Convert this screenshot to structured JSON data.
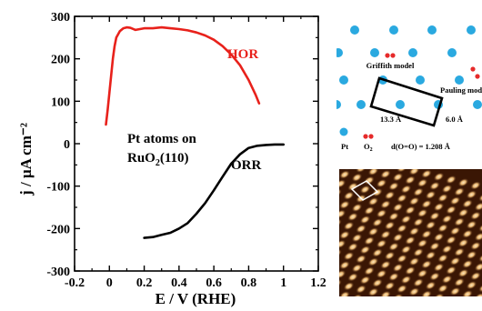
{
  "chart_data": {
    "type": "line",
    "xlabel": "E / V (RHE)",
    "ylabel": "j / μA cm⁻²",
    "xlim": [
      -0.2,
      1.2
    ],
    "ylim": [
      -300,
      300
    ],
    "x_ticks": [
      -0.2,
      0,
      0.2,
      0.4,
      0.6,
      0.8,
      1,
      1.2
    ],
    "x_tick_labels": [
      "-0.2",
      "0",
      "0.2",
      "0.4",
      "0.6",
      "0.8",
      "1",
      "1.2"
    ],
    "y_ticks": [
      -300,
      -200,
      -100,
      0,
      100,
      200,
      300
    ],
    "y_tick_labels": [
      "-300",
      "-200",
      "-100",
      "0",
      "100",
      "200",
      "300"
    ],
    "grid": false,
    "series": [
      {
        "name": "HOR",
        "color": "#e8211b",
        "x": [
          -0.02,
          -0.01,
          0.0,
          0.01,
          0.02,
          0.03,
          0.04,
          0.06,
          0.08,
          0.1,
          0.12,
          0.15,
          0.2,
          0.25,
          0.3,
          0.35,
          0.4,
          0.45,
          0.5,
          0.55,
          0.6,
          0.65,
          0.7,
          0.75,
          0.8,
          0.84,
          0.86
        ],
        "y": [
          45,
          80,
          120,
          160,
          200,
          230,
          250,
          265,
          272,
          274,
          273,
          268,
          272,
          272,
          274,
          272,
          270,
          267,
          262,
          255,
          245,
          230,
          210,
          185,
          150,
          115,
          95
        ]
      },
      {
        "name": "ORR",
        "color": "#000000",
        "x": [
          0.2,
          0.25,
          0.3,
          0.35,
          0.4,
          0.45,
          0.5,
          0.55,
          0.6,
          0.65,
          0.7,
          0.75,
          0.8,
          0.85,
          0.9,
          0.95,
          1.0
        ],
        "y": [
          -222,
          -220,
          -215,
          -210,
          -200,
          -187,
          -165,
          -140,
          -110,
          -78,
          -47,
          -25,
          -10,
          -5,
          -3,
          -2,
          -2
        ]
      }
    ],
    "annotations": [
      "HOR",
      "ORR",
      "Pt atoms on",
      "RuO2(110)"
    ]
  },
  "annotations": {
    "line1": "Pt atoms on",
    "line2_main": "RuO",
    "line2_sub": "2",
    "line2_end": "(110)"
  },
  "model": {
    "griffith": "Griffith model",
    "pauling": "Pauling model",
    "dim_long": "13.3 Å",
    "dim_short": "6.0 Å",
    "legend_pt": "Pt",
    "legend_o2_main": "O",
    "legend_o2_sub": "2",
    "bond_text": "d(O=O) = 1.208 Å",
    "pt_color": "#2aa9e0",
    "o_color": "#e62a2a"
  },
  "stm_colors": {
    "background": "#3a1604",
    "spot": "#f2d49a"
  }
}
